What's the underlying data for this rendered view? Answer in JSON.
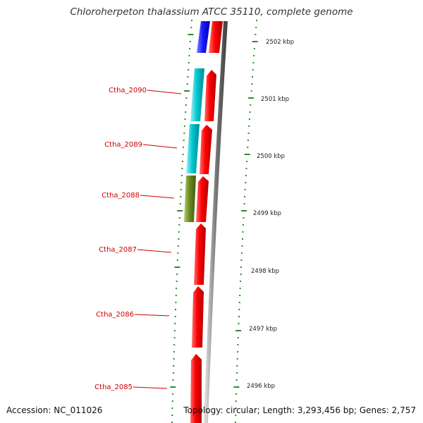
{
  "title": "Chloroherpeton thalassium ATCC 35110, complete genome",
  "footer": {
    "accession": "Accession: NC_011026",
    "topology": "Topology: circular; Length: 3,293,456 bp; Genes: 2,757"
  },
  "colors": {
    "forward_cds": "#ff0000",
    "reverse_blue": "#1a1aff",
    "reverse_cyan": "#00c8d0",
    "reverse_olive": "#6b8c1e",
    "backbone": "#8a8a8a",
    "tick_green": "#2d8a2d",
    "label_red": "#cc0000"
  },
  "kbp_ticks": [
    "2502 kbp",
    "2501 kbp",
    "2500 kbp",
    "2499 kbp",
    "2498 kbp",
    "2497 kbp",
    "2496 kbp"
  ],
  "gene_labels": [
    "Ctha_2090",
    "Ctha_2089",
    "Ctha_2088",
    "Ctha_2087",
    "Ctha_2086",
    "Ctha_2085"
  ]
}
